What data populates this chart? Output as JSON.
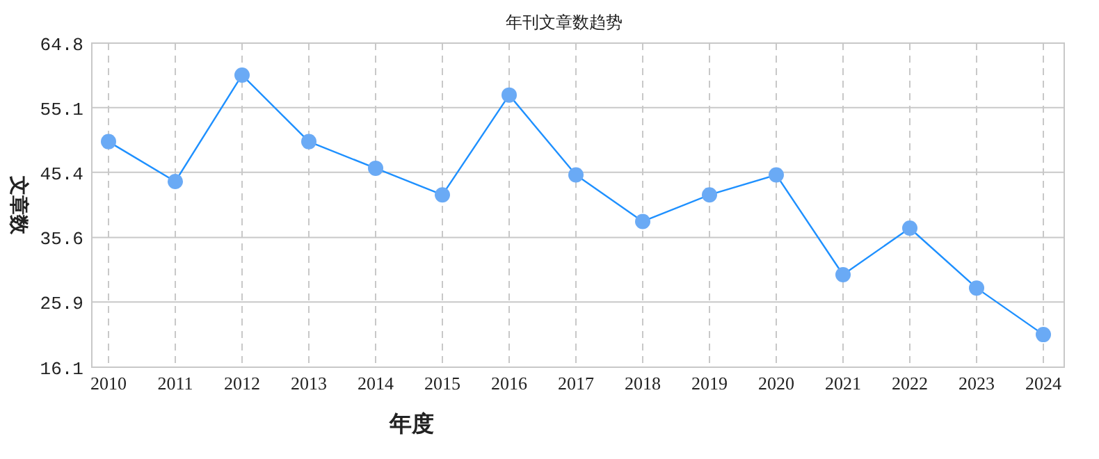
{
  "chart_data": {
    "type": "line",
    "title": "年刊文章数趋势",
    "xlabel": "年度",
    "ylabel": "文章数",
    "categories": [
      "2010",
      "2011",
      "2012",
      "2013",
      "2014",
      "2015",
      "2016",
      "2017",
      "2018",
      "2019",
      "2020",
      "2021",
      "2022",
      "2023",
      "2024"
    ],
    "series": [
      {
        "color": "#1e90ff",
        "values": [
          50,
          44,
          60,
          50,
          46,
          42,
          57,
          45,
          38,
          42,
          45,
          30,
          37,
          28,
          21
        ]
      }
    ],
    "ylim": [
      16.1,
      64.8
    ],
    "yticks": [
      16.1,
      25.9,
      35.6,
      45.4,
      55.1,
      64.8
    ],
    "grid": true,
    "marker": "circle",
    "line_style": "solid"
  }
}
